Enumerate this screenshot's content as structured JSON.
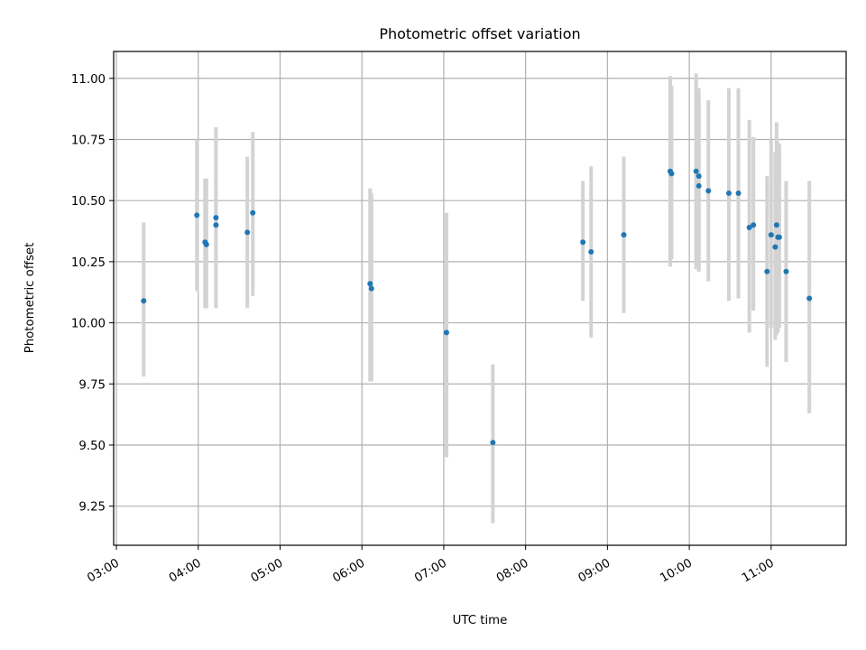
{
  "chart_data": {
    "type": "scatter",
    "title": "Photometric offset variation",
    "xlabel": "UTC time",
    "ylabel": "Photometric offset",
    "x_is_time": true,
    "xlim": [
      "02:58",
      "11:55"
    ],
    "ylim": [
      9.09,
      11.11
    ],
    "xticks": [
      "03:00",
      "04:00",
      "05:00",
      "06:00",
      "07:00",
      "08:00",
      "09:00",
      "10:00",
      "11:00"
    ],
    "yticks": [
      9.25,
      9.5,
      9.75,
      10.0,
      10.25,
      10.5,
      10.75,
      11.0
    ],
    "ytick_labels": [
      "9.25",
      "9.50",
      "9.75",
      "10.00",
      "10.25",
      "10.50",
      "10.75",
      "11.00"
    ],
    "grid": true,
    "colors": {
      "point": "#1f77b4",
      "errorbar": "#d3d3d3",
      "grid": "#b0b0b0"
    },
    "points": [
      {
        "x": "03:20",
        "y": 10.09,
        "yerr_low": 9.78,
        "yerr_high": 10.41
      },
      {
        "x": "03:59",
        "y": 10.44,
        "yerr_low": 10.13,
        "yerr_high": 10.75
      },
      {
        "x": "04:05",
        "y": 10.33,
        "yerr_low": 10.06,
        "yerr_high": 10.59
      },
      {
        "x": "04:06",
        "y": 10.32,
        "yerr_low": 10.06,
        "yerr_high": 10.59
      },
      {
        "x": "04:13",
        "y": 10.43,
        "yerr_low": 10.06,
        "yerr_high": 10.8
      },
      {
        "x": "04:13",
        "y": 10.4,
        "yerr_low": 10.06,
        "yerr_high": 10.8
      },
      {
        "x": "04:36",
        "y": 10.37,
        "yerr_low": 10.06,
        "yerr_high": 10.68
      },
      {
        "x": "04:40",
        "y": 10.45,
        "yerr_low": 10.11,
        "yerr_high": 10.78
      },
      {
        "x": "06:06",
        "y": 10.16,
        "yerr_low": 9.76,
        "yerr_high": 10.55
      },
      {
        "x": "06:07",
        "y": 10.14,
        "yerr_low": 9.76,
        "yerr_high": 10.53
      },
      {
        "x": "07:02",
        "y": 9.96,
        "yerr_low": 9.45,
        "yerr_high": 10.45
      },
      {
        "x": "07:36",
        "y": 9.51,
        "yerr_low": 9.18,
        "yerr_high": 9.83
      },
      {
        "x": "08:42",
        "y": 10.33,
        "yerr_low": 10.09,
        "yerr_high": 10.58
      },
      {
        "x": "08:48",
        "y": 10.29,
        "yerr_low": 9.94,
        "yerr_high": 10.64
      },
      {
        "x": "09:12",
        "y": 10.36,
        "yerr_low": 10.04,
        "yerr_high": 10.68
      },
      {
        "x": "09:46",
        "y": 10.62,
        "yerr_low": 10.23,
        "yerr_high": 11.01
      },
      {
        "x": "09:47",
        "y": 10.61,
        "yerr_low": 10.26,
        "yerr_high": 10.97
      },
      {
        "x": "10:05",
        "y": 10.62,
        "yerr_low": 10.22,
        "yerr_high": 11.02
      },
      {
        "x": "10:07",
        "y": 10.6,
        "yerr_low": 10.21,
        "yerr_high": 10.96
      },
      {
        "x": "10:07",
        "y": 10.56,
        "yerr_low": 10.21,
        "yerr_high": 10.91
      },
      {
        "x": "10:14",
        "y": 10.54,
        "yerr_low": 10.17,
        "yerr_high": 10.91
      },
      {
        "x": "10:29",
        "y": 10.53,
        "yerr_low": 10.09,
        "yerr_high": 10.96
      },
      {
        "x": "10:36",
        "y": 10.53,
        "yerr_low": 10.1,
        "yerr_high": 10.96
      },
      {
        "x": "10:44",
        "y": 10.39,
        "yerr_low": 9.96,
        "yerr_high": 10.83
      },
      {
        "x": "10:47",
        "y": 10.4,
        "yerr_low": 10.05,
        "yerr_high": 10.76
      },
      {
        "x": "10:57",
        "y": 10.21,
        "yerr_low": 9.82,
        "yerr_high": 10.6
      },
      {
        "x": "11:00",
        "y": 10.36,
        "yerr_low": 9.98,
        "yerr_high": 10.75
      },
      {
        "x": "11:03",
        "y": 10.31,
        "yerr_low": 9.93,
        "yerr_high": 10.7
      },
      {
        "x": "11:04",
        "y": 10.4,
        "yerr_low": 9.95,
        "yerr_high": 10.82
      },
      {
        "x": "11:05",
        "y": 10.35,
        "yerr_low": 9.96,
        "yerr_high": 10.74
      },
      {
        "x": "11:06",
        "y": 10.35,
        "yerr_low": 9.98,
        "yerr_high": 10.73
      },
      {
        "x": "11:11",
        "y": 10.21,
        "yerr_low": 9.84,
        "yerr_high": 10.58
      },
      {
        "x": "11:28",
        "y": 10.1,
        "yerr_low": 9.63,
        "yerr_high": 10.58
      }
    ]
  }
}
